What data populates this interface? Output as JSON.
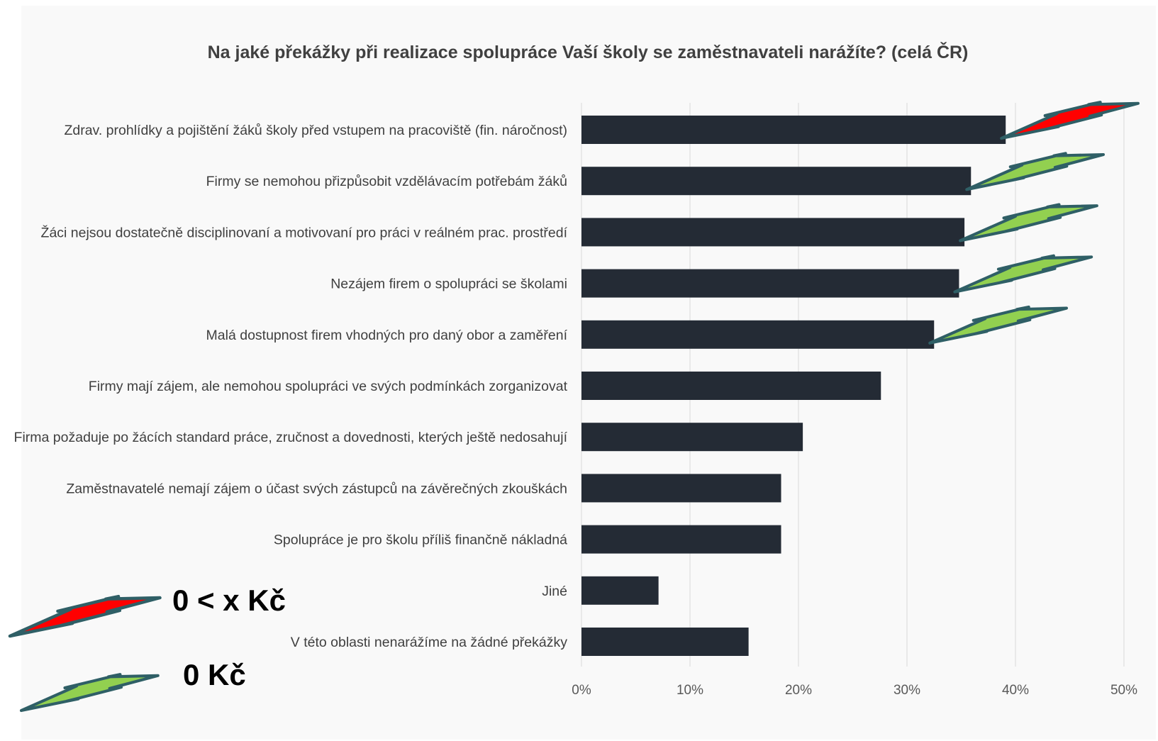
{
  "chart_data": {
    "type": "bar",
    "orientation": "horizontal",
    "title": "Na jaké překážky při realizace spolupráce Vaší školy se zaměstnavateli narážíte? (celá ČR)",
    "categories": [
      "Zdrav. prohlídky a pojištění žáků školy před vstupem na pracoviště (fin. náročnost)",
      "Firmy se nemohou přizpůsobit vzdělávacím potřebám žáků",
      "Žáci nejsou dostatečně disciplinovaní a motivovaní pro práci v reálném prac. prostředí",
      "Nezájem firem o spolupráci se školami",
      "Malá dostupnost firem vhodných pro daný obor a zaměření",
      "Firmy mají zájem, ale nemohou spolupráci ve svých podmínkách zorganizovat",
      "Firma požaduje po žácích standard práce, zručnost a dovednosti, kterých ještě nedosahují",
      "Zaměstnavatelé nemají zájem o účast svých zástupců na závěrečných zkouškách",
      "Spolupráce je pro školu příliš finančně nákladná",
      "Jiné",
      "V této oblasti nenarážíme na žádné překážky"
    ],
    "values": [
      39.1,
      35.9,
      35.3,
      34.8,
      32.5,
      27.6,
      20.4,
      18.4,
      18.4,
      7.1,
      15.4
    ],
    "unit": "%",
    "xlim": [
      0,
      50
    ],
    "xticks": [
      0,
      10,
      20,
      30,
      40,
      50
    ],
    "xtick_labels": [
      "0%",
      "10%",
      "20%",
      "30%",
      "40%",
      "50%"
    ],
    "grid": true,
    "bar_color": "#242b35",
    "bolt_markers": [
      "red",
      "green",
      "green",
      "green",
      "green",
      null,
      null,
      null,
      null,
      null,
      null
    ],
    "legend": {
      "placement": "bottom-left",
      "items": [
        {
          "symbol": "red-lightning-icon",
          "color": "#ff0000",
          "label": "0 < x Kč"
        },
        {
          "symbol": "green-lightning-icon",
          "color": "#92d050",
          "label": "0 Kč"
        }
      ]
    }
  },
  "colors": {
    "background": "#f9f9f9",
    "bolt_outline": "#2f5f66",
    "bolt_red": "#ff0000",
    "bolt_green": "#92d050"
  }
}
